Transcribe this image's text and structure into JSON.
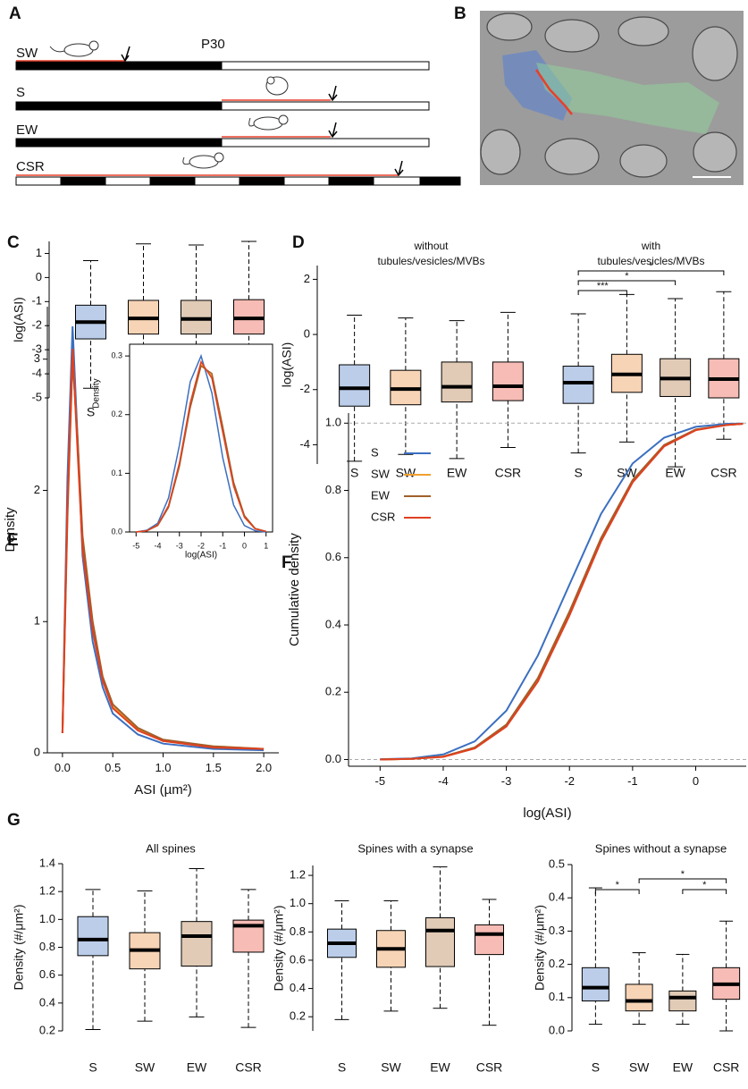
{
  "panel_labels": [
    "A",
    "B",
    "C",
    "D",
    "E",
    "F",
    "G"
  ],
  "schematic": {
    "marker": "P30",
    "rows": [
      "SW",
      "S",
      "EW",
      "CSR"
    ]
  },
  "chart_data": [
    {
      "type": "box",
      "ylabel": "log(ASI)",
      "categories": [
        "S",
        "SW",
        "EW",
        "CSR"
      ],
      "colors": [
        "#3b6fc0",
        "#e8842f",
        "#a8692f",
        "#e8402a"
      ],
      "boxes": [
        {
          "min": -4.6,
          "q1": -2.55,
          "median": -1.85,
          "q3": -1.15,
          "max": 0.7
        },
        {
          "min": -4.35,
          "q1": -2.35,
          "median": -1.7,
          "q3": -0.95,
          "max": 1.4
        },
        {
          "min": -4.9,
          "q1": -2.35,
          "median": -1.72,
          "q3": -0.95,
          "max": 1.35
        },
        {
          "min": -4.1,
          "q1": -2.35,
          "median": -1.7,
          "q3": -0.92,
          "max": 1.5
        }
      ],
      "ylim": [
        -5,
        1.5
      ],
      "yticks": [
        -5,
        -4,
        -3,
        -2,
        -1,
        0,
        1
      ]
    },
    {
      "type": "grouped-box",
      "ylabel": "log(ASI)",
      "ylim": [
        -4.7,
        2.5
      ],
      "yticks": [
        -4,
        -2,
        0,
        2
      ],
      "groups": [
        {
          "title": [
            "without",
            "tubules/vesicles/MVBs"
          ],
          "categories": [
            "S",
            "SW",
            "EW",
            "CSR"
          ],
          "colors": [
            "#3b6fc0",
            "#e8842f",
            "#a8692f",
            "#e8402a"
          ],
          "boxes": [
            {
              "min": -4.6,
              "q1": -2.6,
              "median": -1.95,
              "q3": -1.1,
              "max": 0.7
            },
            {
              "min": -4.35,
              "q1": -2.55,
              "median": -1.98,
              "q3": -1.3,
              "max": 0.6
            },
            {
              "min": -4.5,
              "q1": -2.45,
              "median": -1.9,
              "q3": -1.0,
              "max": 0.5
            },
            {
              "min": -4.1,
              "q1": -2.4,
              "median": -1.88,
              "q3": -1.0,
              "max": 0.8
            }
          ]
        },
        {
          "title": [
            "with",
            "tubules/vesicles/MVBs"
          ],
          "categories": [
            "S",
            "SW",
            "EW",
            "CSR"
          ],
          "colors": [
            "#3b6fc0",
            "#e8842f",
            "#a8692f",
            "#e8402a"
          ],
          "boxes": [
            {
              "min": -4.3,
              "q1": -2.5,
              "median": -1.75,
              "q3": -1.15,
              "max": 0.75
            },
            {
              "min": -3.9,
              "q1": -2.1,
              "median": -1.45,
              "q3": -0.72,
              "max": 1.45
            },
            {
              "min": -4.8,
              "q1": -2.25,
              "median": -1.6,
              "q3": -0.88,
              "max": 1.3
            },
            {
              "min": -3.8,
              "q1": -2.3,
              "median": -1.62,
              "q3": -0.88,
              "max": 1.55
            }
          ],
          "significance": [
            {
              "from": 0,
              "to": 1,
              "label": "***"
            },
            {
              "from": 0,
              "to": 2,
              "label": "*"
            },
            {
              "from": 0,
              "to": 3,
              "label": "*"
            }
          ]
        }
      ]
    },
    {
      "type": "line",
      "xlabel": "ASI (µm²)",
      "ylabel": "Density",
      "x": [
        0,
        0.05,
        0.1,
        0.15,
        0.2,
        0.3,
        0.4,
        0.5,
        0.75,
        1,
        1.5,
        2
      ],
      "series": [
        {
          "color": "#3b6fc0",
          "values": [
            0.15,
            2.1,
            3.25,
            2.4,
            1.5,
            0.85,
            0.5,
            0.3,
            0.14,
            0.07,
            0.03,
            0.02
          ]
        },
        {
          "color": "#f0a030",
          "values": [
            0.15,
            1.85,
            3.05,
            2.35,
            1.6,
            0.95,
            0.55,
            0.35,
            0.18,
            0.09,
            0.05,
            0.03
          ]
        },
        {
          "color": "#a0602a",
          "values": [
            0.15,
            1.8,
            3.0,
            2.4,
            1.65,
            1.0,
            0.58,
            0.37,
            0.19,
            0.1,
            0.05,
            0.03
          ]
        },
        {
          "color": "#e04020",
          "values": [
            0.15,
            1.9,
            3.08,
            2.3,
            1.55,
            0.93,
            0.55,
            0.34,
            0.17,
            0.09,
            0.04,
            0.03
          ]
        }
      ],
      "xlim": [
        -0.15,
        2.15
      ],
      "xticks": [
        {
          "value": 0,
          "label": "0.0"
        },
        0.5,
        {
          "value": 1,
          "label": "1.0"
        },
        1.5,
        {
          "value": 2,
          "label": "2.0"
        }
      ],
      "ylim": [
        0,
        3.4
      ],
      "yticks": [
        0,
        1,
        2,
        3
      ],
      "inset": {
        "type": "line",
        "xlabel": "log(ASI)",
        "ylabel": "Density",
        "x": [
          -5,
          -4.5,
          -4,
          -3.5,
          -3,
          -2.5,
          -2,
          -1.5,
          -1,
          -0.5,
          0,
          0.5,
          1
        ],
        "series": [
          {
            "color": "#3b6fc0",
            "values": [
              0,
              0.003,
              0.015,
              0.058,
              0.148,
              0.256,
              0.3,
              0.237,
              0.127,
              0.046,
              0.011,
              0.002,
              0
            ]
          },
          {
            "color": "#f0a030",
            "values": [
              0,
              0.002,
              0.012,
              0.044,
              0.116,
              0.217,
              0.285,
              0.266,
              0.176,
              0.082,
              0.027,
              0.006,
              0.001
            ]
          },
          {
            "color": "#a0602a",
            "values": [
              0,
              0.002,
              0.011,
              0.042,
              0.112,
              0.212,
              0.283,
              0.27,
              0.18,
              0.085,
              0.028,
              0.006,
              0.001
            ]
          },
          {
            "color": "#e04020",
            "values": [
              0,
              0.002,
              0.012,
              0.045,
              0.118,
              0.22,
              0.29,
              0.262,
              0.17,
              0.078,
              0.025,
              0.005,
              0.001
            ]
          }
        ],
        "xlim": [
          -5.3,
          1.3
        ],
        "xticks": [
          -5,
          -4,
          -3,
          -2,
          -1,
          0,
          1
        ],
        "ylim": [
          0,
          0.32
        ],
        "yticks": [
          {
            "value": 0,
            "label": "0.0"
          },
          0.1,
          0.2,
          0.3
        ]
      }
    },
    {
      "type": "line",
      "xlabel": "log(ASI)",
      "ylabel": "Cumulative density",
      "legend": "upper-left",
      "x": [
        -5,
        -4.5,
        -4,
        -3.5,
        -3,
        -2.5,
        -2,
        -1.5,
        -1,
        -0.5,
        0,
        0.5,
        0.75
      ],
      "series": [
        {
          "name": "S",
          "color": "#3b6fc0",
          "values": [
            0.001,
            0.003,
            0.015,
            0.054,
            0.145,
            0.309,
            0.52,
            0.73,
            0.88,
            0.957,
            0.989,
            0.998,
            0.999
          ]
        },
        {
          "name": "SW",
          "color": "#f0a030",
          "values": [
            0,
            0.002,
            0.008,
            0.034,
            0.1,
            0.236,
            0.433,
            0.652,
            0.827,
            0.933,
            0.98,
            0.995,
            0.998
          ]
        },
        {
          "name": "EW",
          "color": "#a0602a",
          "values": [
            0,
            0.002,
            0.009,
            0.036,
            0.104,
            0.242,
            0.44,
            0.658,
            0.831,
            0.935,
            0.981,
            0.995,
            0.998
          ]
        },
        {
          "name": "CSR",
          "color": "#e04020",
          "values": [
            0,
            0.002,
            0.008,
            0.033,
            0.098,
            0.232,
            0.428,
            0.648,
            0.824,
            0.931,
            0.979,
            0.995,
            0.998
          ]
        }
      ],
      "xlim": [
        -5.5,
        0.8
      ],
      "xticks": [
        -5,
        -4,
        -3,
        -2,
        -1,
        0
      ],
      "ylim": [
        -0.02,
        1.03
      ],
      "yticks": [
        {
          "value": 0,
          "label": "0.0"
        },
        0.2,
        0.4,
        0.6,
        0.8,
        {
          "value": 1,
          "label": "1.0"
        }
      ]
    },
    {
      "type": "box",
      "title": "All spines",
      "ylabel": "Density (#/μm²)",
      "categories": [
        "S",
        "SW",
        "EW",
        "CSR"
      ],
      "colors": [
        "#3b6fc0",
        "#e8842f",
        "#a8692f",
        "#e8402a"
      ],
      "boxes": [
        {
          "min": 0.21,
          "q1": 0.74,
          "median": 0.855,
          "q3": 1.02,
          "max": 1.215
        },
        {
          "min": 0.27,
          "q1": 0.645,
          "median": 0.78,
          "q3": 0.905,
          "max": 1.205
        },
        {
          "min": 0.3,
          "q1": 0.665,
          "median": 0.88,
          "q3": 0.985,
          "max": 1.365
        },
        {
          "min": 0.225,
          "q1": 0.765,
          "median": 0.955,
          "q3": 0.995,
          "max": 1.215
        }
      ],
      "ylim": [
        0.2,
        1.4
      ],
      "yticks": [
        0.2,
        0.4,
        0.6,
        0.8,
        {
          "value": 1,
          "label": "1.0"
        },
        1.2,
        1.4
      ]
    },
    {
      "type": "box",
      "title": "Spines with a synapse",
      "ylabel": "Density (#/μm²)",
      "categories": [
        "S",
        "SW",
        "EW",
        "CSR"
      ],
      "colors": [
        "#3b6fc0",
        "#e8842f",
        "#a8692f",
        "#e8402a"
      ],
      "boxes": [
        {
          "min": 0.18,
          "q1": 0.62,
          "median": 0.72,
          "q3": 0.82,
          "max": 1.02
        },
        {
          "min": 0.24,
          "q1": 0.55,
          "median": 0.68,
          "q3": 0.81,
          "max": 1.02
        },
        {
          "min": 0.26,
          "q1": 0.555,
          "median": 0.81,
          "q3": 0.9,
          "max": 1.26
        },
        {
          "min": 0.14,
          "q1": 0.64,
          "median": 0.785,
          "q3": 0.85,
          "max": 1.03
        }
      ],
      "ylim": [
        0.1,
        1.27
      ],
      "yticks": [
        0.2,
        0.4,
        0.6,
        0.8,
        {
          "value": 1,
          "label": "1.0"
        },
        1.2
      ]
    },
    {
      "type": "box",
      "title": "Spines without a synapse",
      "ylabel": "Density (#/μm²)",
      "categories": [
        "S",
        "SW",
        "EW",
        "CSR"
      ],
      "colors": [
        "#3b6fc0",
        "#e8842f",
        "#a8692f",
        "#e8402a"
      ],
      "boxes": [
        {
          "min": 0.02,
          "q1": 0.09,
          "median": 0.13,
          "q3": 0.19,
          "max": 0.43
        },
        {
          "min": 0.02,
          "q1": 0.06,
          "median": 0.09,
          "q3": 0.14,
          "max": 0.235
        },
        {
          "min": 0.02,
          "q1": 0.06,
          "median": 0.1,
          "q3": 0.12,
          "max": 0.23
        },
        {
          "min": 0,
          "q1": 0.095,
          "median": 0.14,
          "q3": 0.19,
          "max": 0.33
        }
      ],
      "ylim": [
        0,
        0.5
      ],
      "yticks": [
        {
          "value": 0,
          "label": "0.0"
        },
        0.1,
        0.2,
        0.3,
        0.4,
        0.5
      ],
      "significance": [
        {
          "from": 0,
          "to": 1,
          "label": "*"
        },
        {
          "from": 1,
          "to": 3,
          "label": "*"
        },
        {
          "from": 2,
          "to": 3,
          "label": "*"
        }
      ]
    }
  ]
}
